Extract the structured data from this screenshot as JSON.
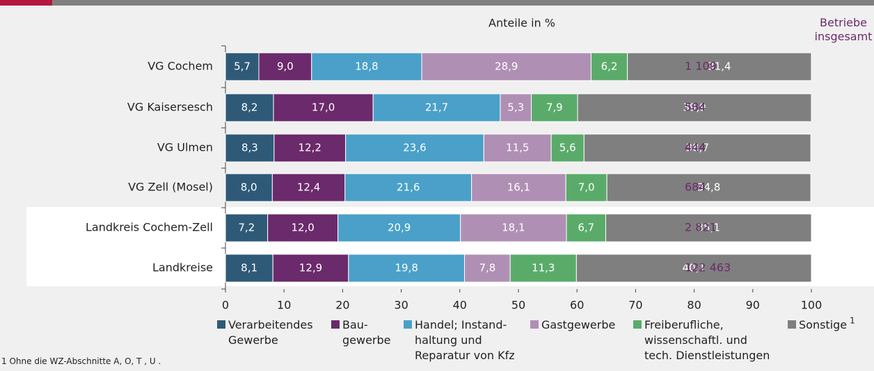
{
  "chart_data": {
    "type": "stacked-bar-horizontal",
    "title": "Anteile in %",
    "totals_header": "Betriebe insgesamt",
    "categories": [
      "VG Cochem",
      "VG Kaisersesch",
      "VG Ulmen",
      "VG Zell (Mosel)",
      "Landkreis Cochem-Zell",
      "Landkreise"
    ],
    "series": [
      {
        "name": "Verarbeitendes\nGewerbe",
        "color": "#2e5a78",
        "values": [
          5.7,
          8.2,
          8.3,
          8.0,
          7.2,
          8.1
        ],
        "value_labels": [
          "5,7",
          "8,2",
          "8,3",
          "8,0",
          "7,2",
          "8,1"
        ]
      },
      {
        "name": "Bau-\ngewerbe",
        "color": "#6b2a6b",
        "values": [
          9.0,
          17.0,
          12.2,
          12.4,
          12.0,
          12.9
        ],
        "value_labels": [
          "9,0",
          "17,0",
          "12,2",
          "12,4",
          "12,0",
          "12,9"
        ]
      },
      {
        "name": "Handel; Instand-\nhaltung und\nReparatur von Kfz",
        "color": "#4aa0c8",
        "values": [
          18.8,
          21.7,
          23.6,
          21.6,
          20.9,
          19.8
        ],
        "value_labels": [
          "18,8",
          "21,7",
          "23,6",
          "21,6",
          "20,9",
          "19,8"
        ]
      },
      {
        "name": "Gastgewerbe",
        "color": "#b08fb5",
        "values": [
          28.9,
          5.3,
          11.5,
          16.1,
          18.1,
          7.8
        ],
        "value_labels": [
          "28,9",
          "5,3",
          "11,5",
          "16,1",
          "18,1",
          "7,8"
        ]
      },
      {
        "name": "Freiberufliche,\nwissenschaftl. und\ntech. Dienstleistungen",
        "color": "#5aab6a",
        "values": [
          6.2,
          7.9,
          5.6,
          7.0,
          6.7,
          11.3
        ],
        "value_labels": [
          "6,2",
          "7,9",
          "5,6",
          "7,0",
          "6,7",
          "11,3"
        ]
      },
      {
        "name": "Sonstige",
        "color": "#7f7f7f",
        "values": [
          31.4,
          39.9,
          38.7,
          34.8,
          35.1,
          40.1
        ],
        "value_labels": [
          "31,4",
          "39,9",
          "38,7",
          "34,8",
          "35,1",
          "40,1"
        ]
      }
    ],
    "totals": {
      "color": "#6b2a6b",
      "values": [
        1109,
        584,
        444,
        684,
        2821,
        122463
      ],
      "value_labels": [
        "1 109",
        "584",
        "444",
        "684",
        "2 821",
        "122 463"
      ]
    },
    "xlim": [
      0,
      100
    ],
    "xticks": [
      0,
      10,
      20,
      30,
      40,
      50,
      60,
      70,
      80,
      90,
      100
    ],
    "footnote": {
      "marker": "1",
      "text": "Ohne die WZ-Abschnitte A, O, T , U ."
    }
  }
}
